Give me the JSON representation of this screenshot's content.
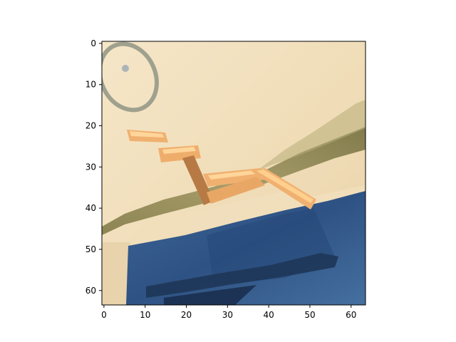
{
  "image": {
    "description_kind": "low-resolution robot camera frame displayed with pixel axes",
    "colors": {
      "background_top": "#f3e4c6",
      "background_mid": "#eedcb8",
      "shadow_band": "#8c8450",
      "shadow_band_dark": "#6f6c3c",
      "table_blue": "#3f669a",
      "table_blue_dark": "#2a4c7a",
      "table_shadow": "#1f3a5e",
      "robot_arm_orange": "#f0b070",
      "robot_arm_highlight": "#ffd59a",
      "robot_arm_dark": "#b87a44",
      "ring_gray": "#8a9080"
    }
  },
  "chart_data": {
    "type": "heatmap",
    "title": "",
    "xlabel": "",
    "ylabel": "",
    "xlim": [
      -0.5,
      63.5
    ],
    "ylim": [
      63.5,
      -0.5
    ],
    "x_ticks": [
      0,
      10,
      20,
      30,
      40,
      50,
      60
    ],
    "y_ticks": [
      0,
      10,
      20,
      30,
      40,
      50,
      60
    ],
    "x_tick_labels": [
      "0",
      "10",
      "20",
      "30",
      "40",
      "50",
      "60"
    ],
    "y_tick_labels": [
      "0",
      "10",
      "20",
      "30",
      "40",
      "50",
      "60"
    ],
    "grid": false
  }
}
